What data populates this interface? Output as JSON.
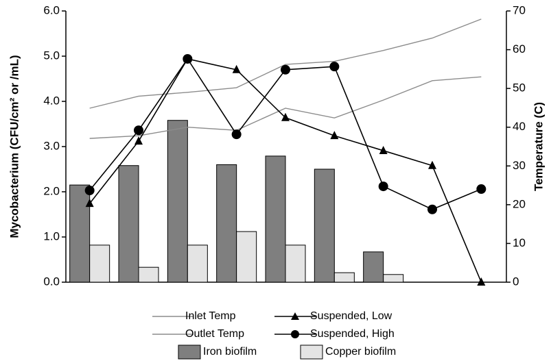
{
  "chart_data": {
    "type": "bar",
    "y_label": "Mycobacterium (CFU/cm² or /mL)",
    "y2_label": "Temperature (C)",
    "categories": [
      null,
      null,
      null,
      null,
      null,
      null,
      null,
      null,
      null
    ],
    "ylim": [
      0,
      6
    ],
    "yticks": [
      {
        "value": 0,
        "label": "0.0"
      },
      {
        "value": 1,
        "label": "1.0"
      },
      {
        "value": 2,
        "label": "2.0"
      },
      {
        "value": 3,
        "label": "3.0"
      },
      {
        "value": 4,
        "label": "4.0"
      },
      {
        "value": 5,
        "label": "5.0"
      },
      {
        "value": 6,
        "label": "6.0"
      }
    ],
    "y2lim": [
      0,
      70
    ],
    "y2ticks": [
      0,
      10,
      20,
      30,
      40,
      50,
      60,
      70
    ],
    "series": [
      {
        "name": "Iron biofilm",
        "type": "bar",
        "color": "#7f7f7f",
        "values": [
          2.15,
          2.58,
          3.58,
          2.6,
          2.79,
          2.5,
          0.67,
          0,
          0
        ]
      },
      {
        "name": "Copper biofilm",
        "type": "bar",
        "color": "#e4e4e4",
        "values": [
          0.82,
          0.33,
          0.82,
          1.12,
          0.82,
          0.21,
          0.17,
          0,
          0
        ]
      },
      {
        "name": "Inlet Temp",
        "type": "line",
        "axis": "y2",
        "color": "#8c8c8c",
        "values": [
          44.9,
          48,
          49,
          50.2,
          56.2,
          57,
          59.8,
          63,
          67.9
        ]
      },
      {
        "name": "Outlet Temp",
        "type": "line",
        "axis": "y2",
        "color": "#8c8c8c",
        "values": [
          37.1,
          37.8,
          40,
          39.2,
          44.9,
          42.4,
          47,
          52,
          53
        ]
      },
      {
        "name": "Suspended, Low",
        "type": "line",
        "marker": "triangle",
        "color": "#000000",
        "values": [
          1.74,
          3.12,
          4.94,
          4.7,
          3.64,
          3.24,
          2.91,
          2.58,
          0
        ]
      },
      {
        "name": "Suspended, High",
        "type": "line",
        "marker": "circle",
        "color": "#000000",
        "values": [
          2.03,
          3.36,
          4.94,
          3.27,
          4.7,
          4.77,
          2.12,
          1.61,
          2.06
        ]
      }
    ]
  }
}
